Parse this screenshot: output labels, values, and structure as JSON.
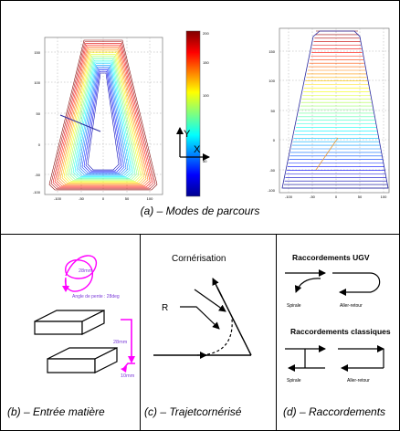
{
  "panels": {
    "a": {
      "caption": "(a) – Modes de parcours",
      "left_plot": {
        "yticks": [
          "150",
          "100",
          "50",
          "0",
          "-50",
          "-100"
        ],
        "xticks": [
          "-100",
          "-50",
          "0",
          "50",
          "100"
        ]
      },
      "colorbar": {
        "ticks": [
          "200",
          "150",
          "100",
          "50"
        ]
      },
      "axes_labels": {
        "y": "Y",
        "x": "X"
      },
      "right_plot": {
        "yticks": [
          "150",
          "100",
          "50",
          "0",
          "-50",
          "-100"
        ],
        "xticks": [
          "-100",
          "-50",
          "0",
          "50",
          "100"
        ]
      }
    },
    "b": {
      "caption": "(b) – Entrée matière",
      "labels": {
        "diameter": "28mm",
        "ramp_angle": "Angle de pente : 28deg",
        "height": "28mm",
        "offset": "10mm"
      }
    },
    "c": {
      "caption": "(c) – Trajetcornérisé",
      "title": "Cornérisation",
      "radius_label": "R"
    },
    "d": {
      "caption": "(d) – Raccordements",
      "ugv": {
        "title": "Raccordements UGV",
        "spiral": "Spirale",
        "back_and_forth": "Aller-retour"
      },
      "classic": {
        "title": "Raccordements classiques",
        "spiral": "Spirale",
        "back_and_forth": "Aller-retour"
      }
    }
  },
  "colors": {
    "magenta": "#ff00ff",
    "arrow_blue": "#4a4ad8",
    "spiral_text": "#7a3ad8"
  }
}
